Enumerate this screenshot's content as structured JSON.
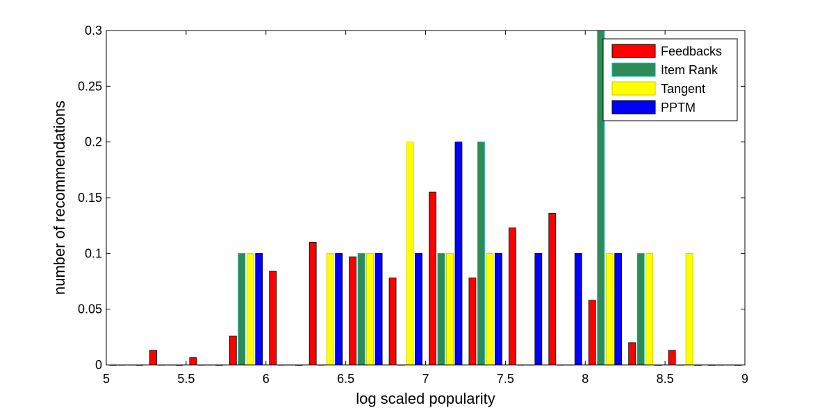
{
  "chart_data": {
    "type": "bar",
    "title": "",
    "xlabel": "log scaled popularity",
    "ylabel": "number of recommendations",
    "xlim": [
      5,
      9
    ],
    "ylim": [
      0,
      0.3
    ],
    "xticks": [
      "5",
      "5.5",
      "6",
      "6.5",
      "7",
      "7.5",
      "8",
      "8.5",
      "9"
    ],
    "yticks": [
      "0",
      "0.05",
      "0.1",
      "0.15",
      "0.2",
      "0.25",
      "0.3"
    ],
    "legend_position": "top-right",
    "grid": false,
    "bin_centers": [
      5.125,
      5.375,
      5.625,
      5.875,
      6.125,
      6.375,
      6.625,
      6.875,
      7.125,
      7.375,
      7.625,
      7.875,
      8.125,
      8.375,
      8.625,
      8.875
    ],
    "series": [
      {
        "name": "Feedbacks",
        "color": "#ff0000",
        "edge": "#000000",
        "values": [
          0,
          0.013,
          0.0065,
          0.026,
          0.084,
          0.11,
          0.097,
          0.078,
          0.155,
          0.078,
          0.123,
          0.136,
          0.058,
          0.02,
          0.013,
          0
        ]
      },
      {
        "name": "Item Rank",
        "color": "#2e8b57",
        "edge": "#00b0b0",
        "values": [
          0,
          0,
          0,
          0.1,
          0,
          0,
          0.1,
          0,
          0.1,
          0.2,
          0,
          0,
          0.3,
          0.1,
          0,
          0
        ]
      },
      {
        "name": "Tangent",
        "color": "#ffff00",
        "edge": "#c8c800",
        "values": [
          0,
          0,
          0,
          0.1,
          0,
          0.1,
          0.1,
          0.2,
          0.1,
          0.1,
          0,
          0,
          0.1,
          0.1,
          0.1,
          0
        ]
      },
      {
        "name": "PPTM",
        "color": "#0000ff",
        "edge": "#000000",
        "values": [
          0,
          0,
          0,
          0.1,
          0,
          0.1,
          0.1,
          0.1,
          0.2,
          0.1,
          0.1,
          0.1,
          0.1,
          0,
          0,
          0
        ]
      }
    ]
  }
}
